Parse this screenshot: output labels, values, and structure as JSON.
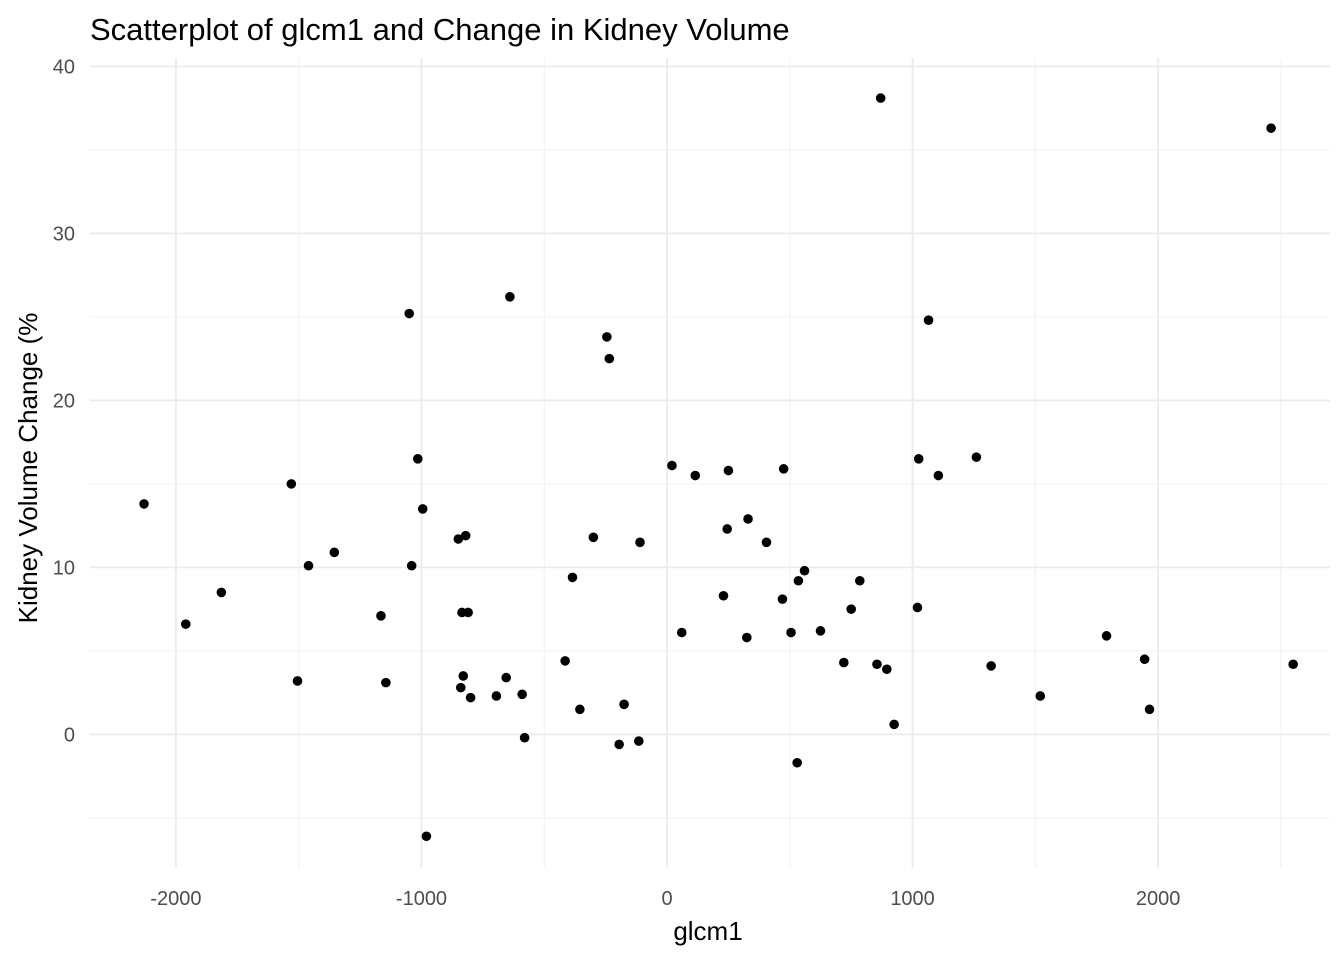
{
  "chart_data": {
    "type": "scatter",
    "title": "Scatterplot of glcm1 and Change in Kidney Volume",
    "xlabel": "glcm1",
    "ylabel": "Kidney Volume Change (%",
    "xlim": [
      -2350,
      2700
    ],
    "ylim": [
      -8,
      40.5
    ],
    "x_ticks": [
      -2000,
      -1000,
      0,
      1000,
      2000
    ],
    "x_tick_labels": [
      "-2000",
      "-1000",
      "0",
      "1000",
      "2000"
    ],
    "y_ticks": [
      0,
      10,
      20,
      30,
      40
    ],
    "y_tick_labels": [
      "0",
      "10",
      "20",
      "30",
      "40"
    ],
    "x_minor": [
      -1500,
      -500,
      500,
      1500,
      2500
    ],
    "y_minor": [
      -5,
      5,
      15,
      25,
      35
    ],
    "grid": true,
    "legend": "none",
    "point_color": "#000000",
    "series": [
      {
        "points": [
          [
            -2130,
            13.8
          ],
          [
            -1960,
            6.6
          ],
          [
            -1815,
            8.5
          ],
          [
            -1530,
            15.0
          ],
          [
            -1505,
            3.2
          ],
          [
            -1460,
            10.1
          ],
          [
            -1355,
            10.9
          ],
          [
            -1165,
            7.1
          ],
          [
            -1145,
            3.1
          ],
          [
            -1050,
            25.2
          ],
          [
            -1040,
            10.1
          ],
          [
            -1015,
            16.5
          ],
          [
            -995,
            13.5
          ],
          [
            -980,
            -6.1
          ],
          [
            -850,
            11.7
          ],
          [
            -840,
            2.8
          ],
          [
            -835,
            7.3
          ],
          [
            -830,
            3.5
          ],
          [
            -820,
            11.9
          ],
          [
            -810,
            7.3
          ],
          [
            -800,
            2.2
          ],
          [
            -695,
            2.3
          ],
          [
            -655,
            3.4
          ],
          [
            -640,
            26.2
          ],
          [
            -590,
            2.4
          ],
          [
            -580,
            -0.2
          ],
          [
            -415,
            4.4
          ],
          [
            -385,
            9.4
          ],
          [
            -355,
            1.5
          ],
          [
            -300,
            11.8
          ],
          [
            -245,
            23.8
          ],
          [
            -235,
            22.5
          ],
          [
            -195,
            -0.6
          ],
          [
            -175,
            1.8
          ],
          [
            -115,
            -0.4
          ],
          [
            -110,
            11.5
          ],
          [
            20,
            16.1
          ],
          [
            60,
            6.1
          ],
          [
            115,
            15.5
          ],
          [
            230,
            8.3
          ],
          [
            245,
            12.3
          ],
          [
            250,
            15.8
          ],
          [
            325,
            5.8
          ],
          [
            330,
            12.9
          ],
          [
            405,
            11.5
          ],
          [
            470,
            8.1
          ],
          [
            475,
            15.9
          ],
          [
            505,
            6.1
          ],
          [
            530,
            -1.7
          ],
          [
            535,
            9.2
          ],
          [
            560,
            9.8
          ],
          [
            625,
            6.2
          ],
          [
            720,
            4.3
          ],
          [
            750,
            7.5
          ],
          [
            785,
            9.2
          ],
          [
            855,
            4.2
          ],
          [
            870,
            38.1
          ],
          [
            895,
            3.9
          ],
          [
            925,
            0.6
          ],
          [
            1020,
            7.6
          ],
          [
            1025,
            16.5
          ],
          [
            1065,
            24.8
          ],
          [
            1105,
            15.5
          ],
          [
            1260,
            16.6
          ],
          [
            1320,
            4.1
          ],
          [
            1520,
            2.3
          ],
          [
            1790,
            5.9
          ],
          [
            1945,
            4.5
          ],
          [
            1965,
            1.5
          ],
          [
            2460,
            36.3
          ],
          [
            2550,
            4.2
          ]
        ]
      }
    ]
  }
}
